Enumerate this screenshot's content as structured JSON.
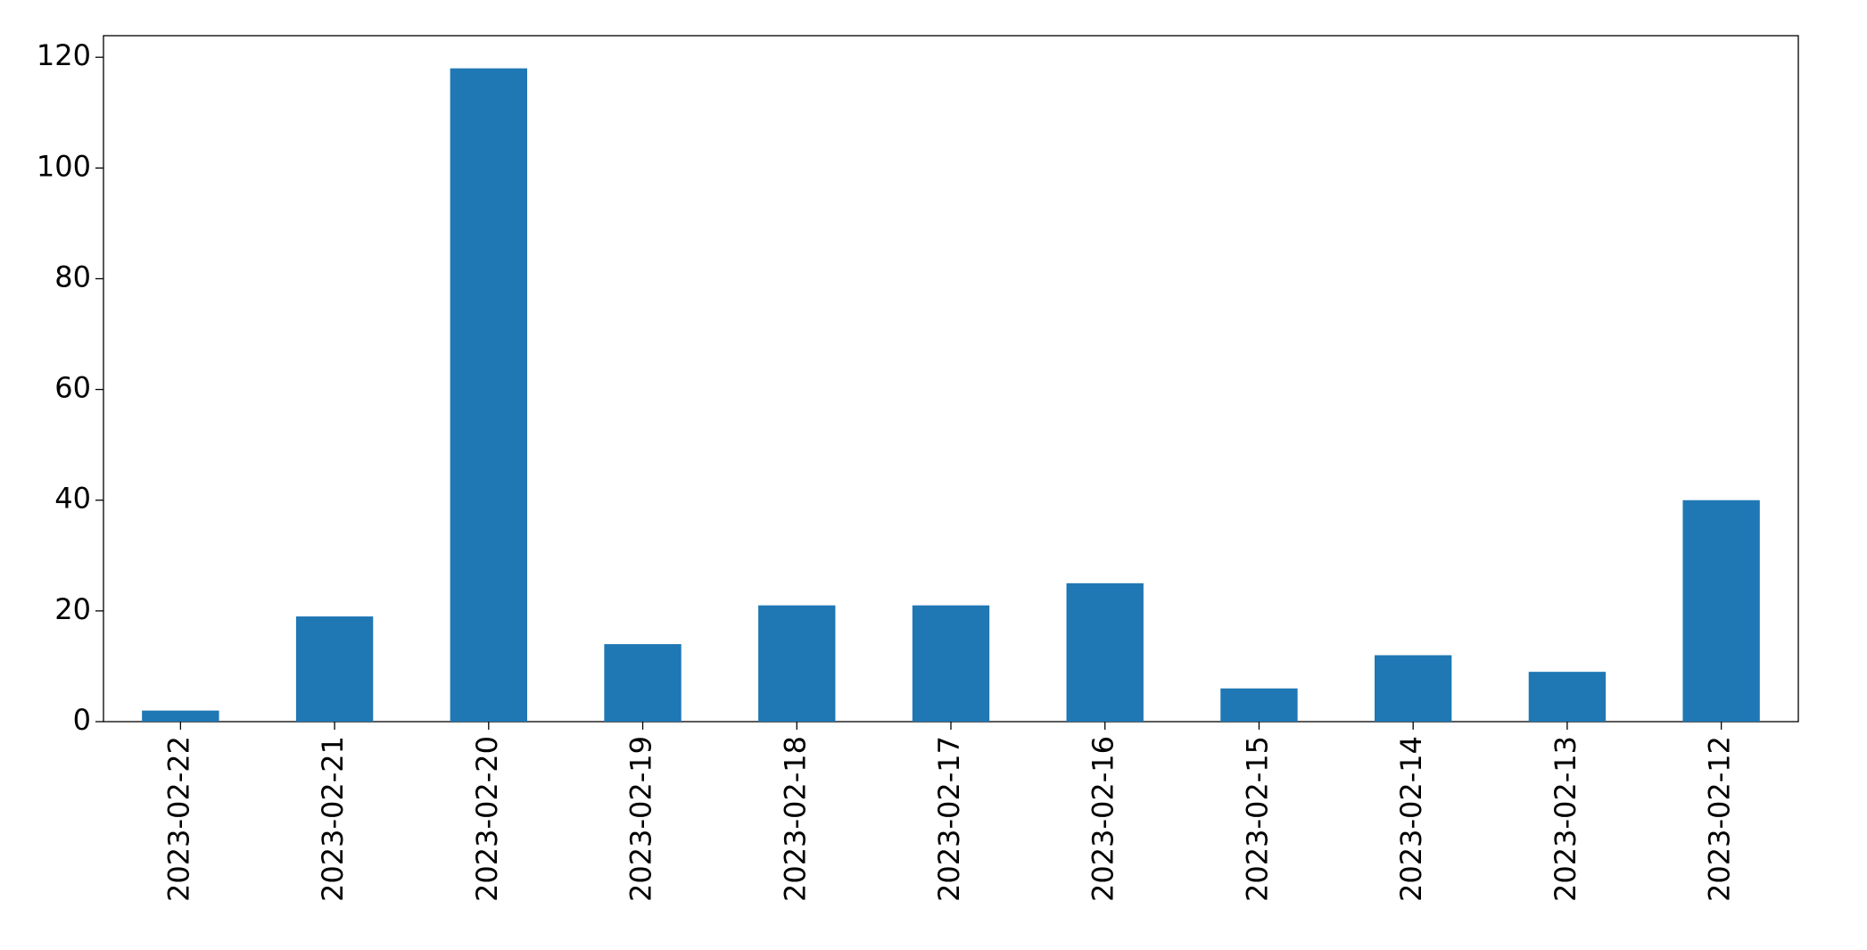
{
  "chart_data": {
    "type": "bar",
    "categories": [
      "2023-02-22",
      "2023-02-21",
      "2023-02-20",
      "2023-02-19",
      "2023-02-18",
      "2023-02-17",
      "2023-02-16",
      "2023-02-15",
      "2023-02-14",
      "2023-02-13",
      "2023-02-12"
    ],
    "values": [
      2,
      19,
      118,
      14,
      21,
      21,
      25,
      6,
      12,
      9,
      40
    ],
    "color": "#1f77b4",
    "ylim": [
      0,
      123.9
    ],
    "yticks": [
      0,
      20,
      40,
      60,
      80,
      100,
      120
    ],
    "grid": false
  }
}
